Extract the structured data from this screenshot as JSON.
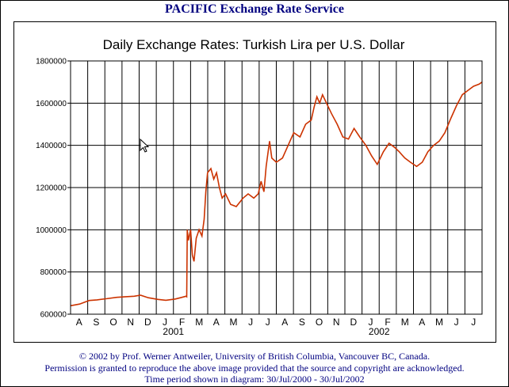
{
  "header": {
    "title": "PACIFIC Exchange Rate Service"
  },
  "chart_data": {
    "type": "line",
    "title": "Daily Exchange Rates: Turkish Lira per U.S. Dollar",
    "xlabel": "",
    "ylabel": "",
    "ylim": [
      600000,
      1800000
    ],
    "yticks": [
      600000,
      800000,
      1000000,
      1200000,
      1400000,
      1600000,
      1800000
    ],
    "ytick_labels": [
      "600000",
      "800000",
      "1000000",
      "1200000",
      "1400000",
      "1600000",
      "1800000"
    ],
    "month_labels": [
      "A",
      "S",
      "O",
      "N",
      "D",
      "J",
      "F",
      "M",
      "A",
      "M",
      "J",
      "J",
      "A",
      "S",
      "O",
      "N",
      "D",
      "J",
      "F",
      "M",
      "A",
      "M",
      "J",
      "J"
    ],
    "year_labels": [
      {
        "label": "2001",
        "month_index": 5
      },
      {
        "label": "2002",
        "month_index": 17
      }
    ],
    "grid": true,
    "line_color": "#cc3300",
    "series": [
      {
        "points": [
          [
            "2000-07-30",
            640000
          ],
          [
            "2000-08-15",
            648000
          ],
          [
            "2000-09-01",
            665000
          ],
          [
            "2000-09-15",
            668000
          ],
          [
            "2000-10-01",
            673000
          ],
          [
            "2000-10-20",
            680000
          ],
          [
            "2000-11-05",
            683000
          ],
          [
            "2000-11-20",
            685000
          ],
          [
            "2000-12-01",
            690000
          ],
          [
            "2000-12-15",
            678000
          ],
          [
            "2001-01-01",
            670000
          ],
          [
            "2001-01-15",
            666000
          ],
          [
            "2001-02-01",
            672000
          ],
          [
            "2001-02-10",
            678000
          ],
          [
            "2001-02-20",
            685000
          ],
          [
            "2001-02-21",
            683000
          ],
          [
            "2001-02-22",
            1000000
          ],
          [
            "2001-02-24",
            950000
          ],
          [
            "2001-02-28",
            1000000
          ],
          [
            "2001-03-03",
            880000
          ],
          [
            "2001-03-06",
            850000
          ],
          [
            "2001-03-10",
            960000
          ],
          [
            "2001-03-15",
            1000000
          ],
          [
            "2001-03-20",
            970000
          ],
          [
            "2001-03-24",
            1050000
          ],
          [
            "2001-03-27",
            1180000
          ],
          [
            "2001-03-30",
            1270000
          ],
          [
            "2001-04-05",
            1290000
          ],
          [
            "2001-04-10",
            1240000
          ],
          [
            "2001-04-15",
            1270000
          ],
          [
            "2001-04-20",
            1200000
          ],
          [
            "2001-04-25",
            1150000
          ],
          [
            "2001-05-01",
            1170000
          ],
          [
            "2001-05-10",
            1120000
          ],
          [
            "2001-05-20",
            1110000
          ],
          [
            "2001-06-01",
            1150000
          ],
          [
            "2001-06-10",
            1170000
          ],
          [
            "2001-06-20",
            1150000
          ],
          [
            "2001-06-28",
            1170000
          ],
          [
            "2001-07-03",
            1230000
          ],
          [
            "2001-07-08",
            1180000
          ],
          [
            "2001-07-12",
            1300000
          ],
          [
            "2001-07-18",
            1420000
          ],
          [
            "2001-07-22",
            1340000
          ],
          [
            "2001-07-30",
            1320000
          ],
          [
            "2001-08-10",
            1340000
          ],
          [
            "2001-08-20",
            1400000
          ],
          [
            "2001-08-30",
            1460000
          ],
          [
            "2001-09-10",
            1440000
          ],
          [
            "2001-09-20",
            1500000
          ],
          [
            "2001-09-30",
            1520000
          ],
          [
            "2001-10-05",
            1580000
          ],
          [
            "2001-10-10",
            1630000
          ],
          [
            "2001-10-15",
            1600000
          ],
          [
            "2001-10-20",
            1640000
          ],
          [
            "2001-10-27",
            1600000
          ],
          [
            "2001-11-05",
            1550000
          ],
          [
            "2001-11-15",
            1500000
          ],
          [
            "2001-11-25",
            1440000
          ],
          [
            "2001-12-05",
            1430000
          ],
          [
            "2001-12-15",
            1480000
          ],
          [
            "2001-12-25",
            1440000
          ],
          [
            "2002-01-05",
            1400000
          ],
          [
            "2002-01-15",
            1350000
          ],
          [
            "2002-01-25",
            1310000
          ],
          [
            "2002-02-05",
            1370000
          ],
          [
            "2002-02-15",
            1410000
          ],
          [
            "2002-02-25",
            1390000
          ],
          [
            "2002-03-05",
            1370000
          ],
          [
            "2002-03-15",
            1340000
          ],
          [
            "2002-03-25",
            1320000
          ],
          [
            "2002-04-05",
            1300000
          ],
          [
            "2002-04-15",
            1320000
          ],
          [
            "2002-04-25",
            1370000
          ],
          [
            "2002-05-05",
            1400000
          ],
          [
            "2002-05-15",
            1420000
          ],
          [
            "2002-05-25",
            1460000
          ],
          [
            "2002-06-05",
            1530000
          ],
          [
            "2002-06-15",
            1590000
          ],
          [
            "2002-06-25",
            1640000
          ],
          [
            "2002-07-05",
            1660000
          ],
          [
            "2002-07-15",
            1680000
          ],
          [
            "2002-07-25",
            1690000
          ],
          [
            "2002-07-30",
            1700000
          ]
        ]
      }
    ]
  },
  "footer": {
    "line1": "© 2002 by Prof. Werner Antweiler, University of British Columbia, Vancouver BC, Canada.",
    "line2": "Permission is granted to reproduce the above image provided that the source and copyright are acknowledged.",
    "line3": "Time period shown in diagram: 30/Jul/2000 - 30/Jul/2002"
  }
}
